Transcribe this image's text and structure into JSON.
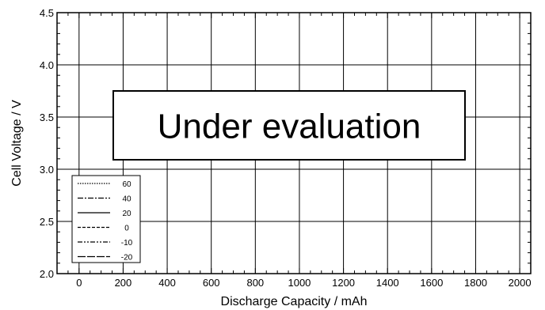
{
  "chart_data": {
    "type": "line",
    "title": "",
    "xlabel": "Discharge  Capacity  /  mAh",
    "ylabel": "Cell  Voltage  /  V",
    "xlim": [
      -100,
      2050
    ],
    "ylim": [
      2.0,
      4.5
    ],
    "x_ticks": [
      0,
      200,
      400,
      600,
      800,
      1000,
      1200,
      1400,
      1600,
      1800,
      2000
    ],
    "x_tick_labels": [
      "0",
      "200",
      "400",
      "600",
      "800",
      "1000",
      "1200",
      "1400",
      "1600",
      "1800",
      "2000"
    ],
    "y_ticks": [
      2.0,
      2.5,
      3.0,
      3.5,
      4.0,
      4.5
    ],
    "y_tick_labels": [
      "2.0",
      "2.5",
      "3.0",
      "3.5",
      "4.0",
      "4.5"
    ],
    "grid": true,
    "legend_position": "bottom-left",
    "series": [
      {
        "name": "60",
        "dash": "dotted",
        "values": []
      },
      {
        "name": "40",
        "dash": "dash-dot",
        "values": []
      },
      {
        "name": "20",
        "dash": "solid",
        "values": []
      },
      {
        "name": "0",
        "dash": "dashed",
        "values": []
      },
      {
        "name": "-10",
        "dash": "dash-dot-dot",
        "values": []
      },
      {
        "name": "-20",
        "dash": "long-dash",
        "values": []
      }
    ],
    "annotation": "Under evaluation"
  }
}
